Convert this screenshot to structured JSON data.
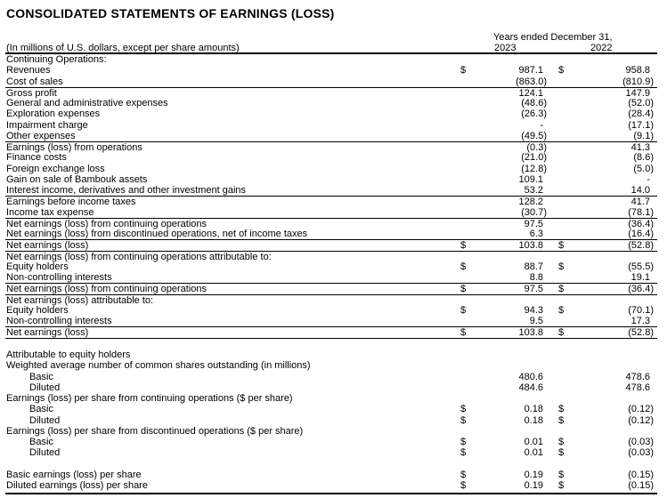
{
  "title": "CONSOLIDATED STATEMENTS OF EARNINGS (LOSS)",
  "header": {
    "period": "Years ended December 31,",
    "units": "(In millions of U.S. dollars, except per share amounts)",
    "year1": "2023",
    "year2": "2022"
  },
  "rows": [
    {
      "label": "Continuing Operations:"
    },
    {
      "label": "Revenues",
      "d1": "$",
      "v1": "987.1",
      "d2": "$",
      "v2": "958.8"
    },
    {
      "label": "Cost of sales",
      "v1": "(863.0)",
      "v2": "(810.9)"
    },
    {
      "label": "Gross profit",
      "v1": "124.1",
      "v2": "147.9",
      "line_above": true
    },
    {
      "label": "General and administrative expenses",
      "v1": "(48.6)",
      "v2": "(52.0)"
    },
    {
      "label": "Exploration expenses",
      "v1": "(26.3)",
      "v2": "(28.4)"
    },
    {
      "label": "Impairment charge",
      "v1": "-",
      "v2": "(17.1)"
    },
    {
      "label": "Other expenses",
      "v1": "(49.5)",
      "v2": "(9.1)"
    },
    {
      "label": "Earnings (loss) from operations",
      "v1": "(0.3)",
      "v2": "41.3",
      "line_above": true
    },
    {
      "label": "Finance costs",
      "v1": "(21.0)",
      "v2": "(8.6)"
    },
    {
      "label": "Foreign exchange loss",
      "v1": "(12.8)",
      "v2": "(5.0)"
    },
    {
      "label": "Gain on sale of Bambouk assets",
      "v1": "109.1",
      "v2": "-"
    },
    {
      "label": "Interest income, derivatives and other investment gains",
      "v1": "53.2",
      "v2": "14.0"
    },
    {
      "label": "Earnings before income taxes",
      "v1": "128.2",
      "v2": "41.7",
      "line_above": true
    },
    {
      "label": "Income tax expense",
      "v1": "(30.7)",
      "v2": "(78.1)"
    },
    {
      "label": "Net earnings (loss) from continuing operations",
      "v1": "97.5",
      "v2": "(36.4)",
      "line_above": true
    },
    {
      "label": "Net earnings (loss) from discontinued operations, net of income taxes",
      "v1": "6.3",
      "v2": "(16.4)"
    },
    {
      "label": "Net earnings (loss)",
      "d1": "$",
      "v1": "103.8",
      "d2": "$",
      "v2": "(52.8)",
      "line_above": true
    },
    {
      "label": "Net earnings (loss) from continuing operations attributable to:",
      "line_above": true
    },
    {
      "label": "Equity holders",
      "d1": "$",
      "v1": "88.7",
      "d2": "$",
      "v2": "(55.5)"
    },
    {
      "label": "Non-controlling interests",
      "v1": "8.8",
      "v2": "19.1"
    },
    {
      "label": "Net earnings (loss) from continuing operations",
      "d1": "$",
      "v1": "97.5",
      "d2": "$",
      "v2": "(36.4)",
      "line_above": true
    },
    {
      "label": "Net earnings (loss) attributable to:",
      "line_above": true
    },
    {
      "label": "Equity holders",
      "d1": "$",
      "v1": "94.3",
      "d2": "$",
      "v2": "(70.1)"
    },
    {
      "label": "Non-controlling interests",
      "v1": "9.5",
      "v2": "17.3"
    },
    {
      "label": "Net earnings (loss)",
      "d1": "$",
      "v1": "103.8",
      "d2": "$",
      "v2": "(52.8)",
      "line_above": true,
      "line_below": true
    },
    {
      "blank": true
    },
    {
      "label": "Attributable to equity holders"
    },
    {
      "label": "Weighted average number of common shares outstanding (in millions)"
    },
    {
      "label": "Basic",
      "indent": true,
      "v1": "480.6",
      "v2": "478.6"
    },
    {
      "label": "Diluted",
      "indent": true,
      "v1": "484.6",
      "v2": "478.6"
    },
    {
      "label": "Earnings (loss) per share from continuing operations ($ per share)"
    },
    {
      "label": "Basic",
      "indent": true,
      "d1": "$",
      "v1": "0.18",
      "d2": "$",
      "v2": "(0.12)"
    },
    {
      "label": "Diluted",
      "indent": true,
      "d1": "$",
      "v1": "0.18",
      "d2": "$",
      "v2": "(0.12)"
    },
    {
      "label": "Earnings (loss) per share from discontinued operations ($ per share)"
    },
    {
      "label": "Basic",
      "indent": true,
      "d1": "$",
      "v1": "0.01",
      "d2": "$",
      "v2": "(0.03)"
    },
    {
      "label": "Diluted",
      "indent": true,
      "d1": "$",
      "v1": "0.01",
      "d2": "$",
      "v2": "(0.03)"
    },
    {
      "blank": true
    },
    {
      "label": "Basic earnings (loss) per share",
      "d1": "$",
      "v1": "0.19",
      "d2": "$",
      "v2": "(0.15)"
    },
    {
      "label": "Diluted earnings (loss) per share",
      "d1": "$",
      "v1": "0.19",
      "d2": "$",
      "v2": "(0.15)"
    }
  ]
}
